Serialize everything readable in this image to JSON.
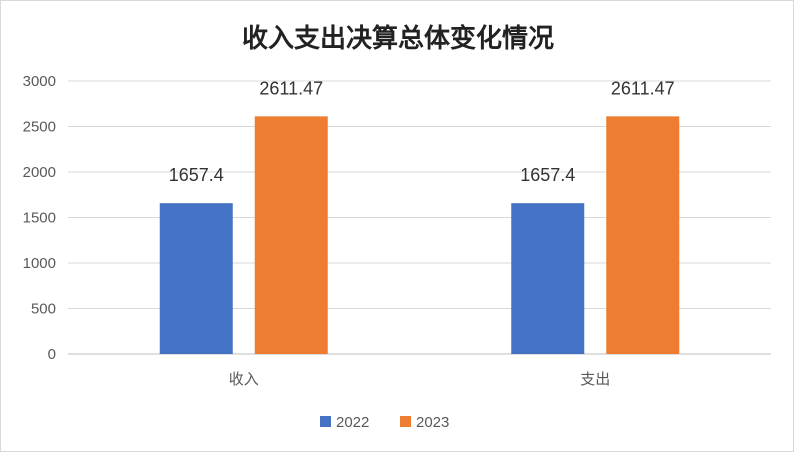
{
  "chart_data": {
    "type": "bar",
    "title": "收入支出决算总体变化情况",
    "categories": [
      "收入",
      "支出"
    ],
    "series": [
      {
        "name": "2022",
        "values": [
          1657.4,
          1657.4
        ],
        "labels": [
          "1657.4",
          "1657.4"
        ],
        "color": "#4472c4"
      },
      {
        "name": "2023",
        "values": [
          2611.47,
          2611.47
        ],
        "labels": [
          "2611.47",
          "2611.47"
        ],
        "color": "#ed7d31"
      }
    ],
    "ylim": [
      0,
      3000
    ],
    "yticks": [
      0,
      500,
      1000,
      1500,
      2000,
      2500,
      3000
    ],
    "ytick_labels": [
      "0",
      "500",
      "1000",
      "1500",
      "2000",
      "2500",
      "3000"
    ],
    "grid": true,
    "legend_position": "bottom",
    "gridline_color": "#d9d9d9",
    "axis_color": "#bfbfbf"
  }
}
